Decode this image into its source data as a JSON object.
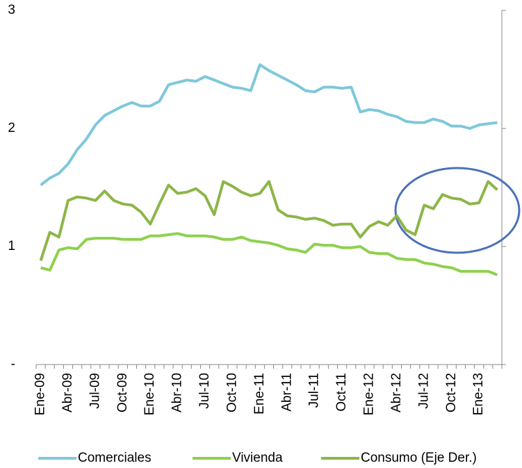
{
  "chart_data": {
    "type": "line",
    "categories": [
      "Ene-09",
      null,
      null,
      "Abr-09",
      null,
      null,
      "Jul-09",
      null,
      null,
      "Oct-09",
      null,
      null,
      "Ene-10",
      null,
      null,
      "Abr-10",
      null,
      null,
      "Jul-10",
      null,
      null,
      "Oct-10",
      null,
      null,
      "Ene-11",
      null,
      null,
      "Abr-11",
      null,
      null,
      "Jul-11",
      null,
      null,
      "Oct-11",
      null,
      null,
      "Ene-12",
      null,
      null,
      "Abr-12",
      null,
      null,
      "Jul-12",
      null,
      null,
      "Oct-12",
      null,
      null,
      "Ene-13",
      null,
      null
    ],
    "series": [
      {
        "name": "Comerciales",
        "color": "#7ec8da",
        "values": [
          1.52,
          1.58,
          1.62,
          1.7,
          1.82,
          1.91,
          2.03,
          2.11,
          2.15,
          2.19,
          2.22,
          2.19,
          2.19,
          2.23,
          2.37,
          2.39,
          2.41,
          2.4,
          2.44,
          2.41,
          2.38,
          2.35,
          2.34,
          2.32,
          2.54,
          2.49,
          2.45,
          2.41,
          2.37,
          2.32,
          2.31,
          2.35,
          2.35,
          2.34,
          2.35,
          2.14,
          2.16,
          2.15,
          2.12,
          2.1,
          2.06,
          2.05,
          2.05,
          2.08,
          2.06,
          2.02,
          2.02,
          2.0,
          2.03,
          2.04,
          2.05
        ]
      },
      {
        "name": "Vivienda",
        "color": "#8ed04e",
        "values": [
          0.82,
          0.8,
          0.97,
          0.99,
          0.98,
          1.06,
          1.07,
          1.07,
          1.07,
          1.06,
          1.06,
          1.06,
          1.09,
          1.09,
          1.1,
          1.11,
          1.09,
          1.09,
          1.09,
          1.08,
          1.06,
          1.06,
          1.08,
          1.05,
          1.04,
          1.03,
          1.01,
          0.98,
          0.97,
          0.95,
          1.02,
          1.01,
          1.01,
          0.99,
          0.99,
          1.0,
          0.95,
          0.94,
          0.94,
          0.9,
          0.89,
          0.89,
          0.86,
          0.85,
          0.83,
          0.82,
          0.79,
          0.79,
          0.79,
          0.79,
          0.76
        ]
      },
      {
        "name": "Consumo (Eje Der.)",
        "color": "#8db548",
        "axis": "y2",
        "values": [
          0.88,
          1.12,
          1.08,
          1.39,
          1.42,
          1.41,
          1.39,
          1.47,
          1.39,
          1.36,
          1.35,
          1.29,
          1.19,
          1.36,
          1.52,
          1.45,
          1.46,
          1.49,
          1.43,
          1.27,
          1.55,
          1.51,
          1.46,
          1.43,
          1.45,
          1.55,
          1.31,
          1.26,
          1.25,
          1.23,
          1.24,
          1.22,
          1.18,
          1.19,
          1.19,
          1.08,
          1.17,
          1.21,
          1.18,
          1.26,
          1.14,
          1.1,
          1.35,
          1.32,
          1.44,
          1.41,
          1.4,
          1.36,
          1.37,
          1.55,
          1.48
        ]
      }
    ],
    "ylim": [
      0,
      3
    ],
    "yticks": [
      {
        "value": 0,
        "label": "-"
      },
      1,
      2,
      3
    ],
    "y2lim": [
      0,
      3
    ]
  }
}
